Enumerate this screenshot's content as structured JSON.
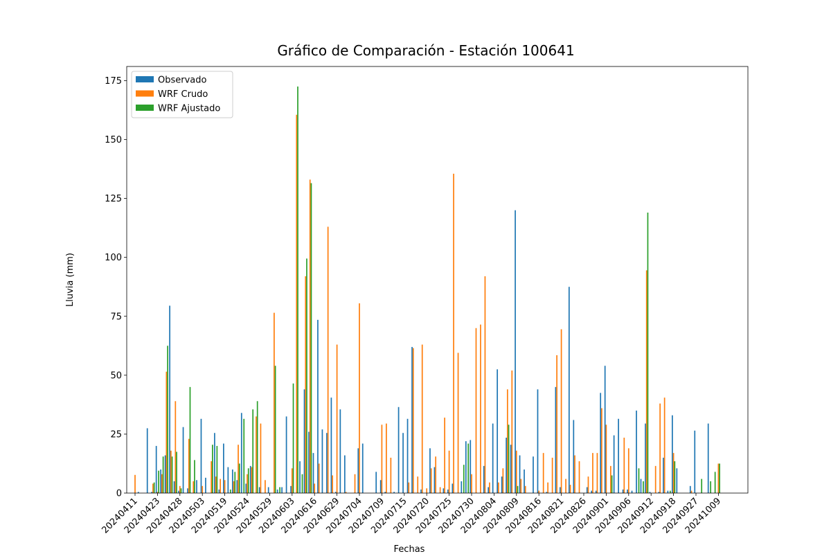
{
  "chart_data": {
    "type": "bar",
    "title": "Gráfico de Comparación - Estación 100641",
    "x_label": "Fechas",
    "y_label": "Lluvia (mm)",
    "legend": "upper left",
    "categories": [
      "20240411",
      null,
      null,
      null,
      null,
      "20240423",
      null,
      null,
      null,
      null,
      "20240428",
      null,
      null,
      null,
      null,
      "20240503",
      null,
      null,
      null,
      null,
      "20240519",
      null,
      null,
      null,
      null,
      "20240524",
      null,
      null,
      null,
      null,
      "20240529",
      null,
      null,
      null,
      null,
      "20240603",
      null,
      null,
      null,
      null,
      "20240616",
      null,
      null,
      null,
      null,
      "20240629",
      null,
      null,
      null,
      null,
      "20240704",
      null,
      null,
      null,
      null,
      "20240709",
      null,
      null,
      null,
      null,
      "20240715",
      null,
      null,
      null,
      null,
      "20240720",
      null,
      null,
      null,
      null,
      "20240725",
      null,
      null,
      null,
      null,
      "20240730",
      null,
      null,
      null,
      null,
      "20240804",
      null,
      null,
      null,
      null,
      "20240809",
      null,
      null,
      null,
      null,
      "20240816",
      null,
      null,
      null,
      null,
      "20240821",
      null,
      null,
      null,
      null,
      "20240826",
      null,
      null,
      null,
      null,
      "20240901",
      null,
      null,
      null,
      null,
      "20240906",
      null,
      null,
      null,
      null,
      "20240912",
      null,
      null,
      null,
      null,
      "20240918",
      null,
      null,
      null,
      null,
      "20240927",
      null,
      null,
      null,
      null,
      "20241009"
    ],
    "series": [
      {
        "name": "Observado",
        "color": "#1f77b4",
        "values": [
          0,
          0.5,
          0,
          27.5,
          0.5,
          20,
          10,
          16,
          79.5,
          5,
          1,
          28,
          2,
          0,
          5.5,
          31.5,
          6.5,
          0,
          25.5,
          1.5,
          21,
          11,
          10,
          5.5,
          34,
          4,
          11.5,
          0,
          2.5,
          0,
          2.5,
          0,
          1.5,
          2.5,
          32.5,
          3,
          0,
          13.5,
          44,
          26,
          17,
          73.5,
          27,
          25.5,
          40.5,
          0.5,
          35.5,
          16,
          0,
          0,
          19,
          21,
          0,
          0,
          9,
          5.5,
          0.5,
          0,
          0.5,
          36.5,
          25.5,
          31.5,
          62,
          0,
          1.5,
          0,
          19,
          11,
          0,
          2,
          1.5,
          4,
          0,
          5,
          22,
          22.5,
          0,
          0,
          11.5,
          2.5,
          29.5,
          52.5,
          7,
          23.5,
          20.5,
          120,
          16,
          10,
          0,
          15.5,
          44,
          0,
          0.5,
          0,
          45,
          2.5,
          0,
          87.5,
          31,
          0,
          0,
          2.5,
          1,
          1,
          42.5,
          54,
          0,
          24.5,
          31.5,
          1.5,
          1.5,
          1,
          35,
          6,
          29.5,
          0.5,
          0,
          0.5,
          15,
          1,
          33,
          10.5,
          0,
          0,
          3,
          26.5,
          0,
          0,
          29.5,
          0,
          0
        ]
      },
      {
        "name": "WRF Crudo",
        "color": "#ff7f0e",
        "values": [
          7.7,
          0,
          0,
          0,
          4,
          0.5,
          8,
          51.5,
          18,
          39,
          3,
          0,
          23,
          5,
          0,
          3,
          0,
          13.5,
          7,
          6,
          5.5,
          0,
          5,
          20.5,
          0,
          8,
          11,
          32.5,
          29.5,
          5.5,
          0,
          76.5,
          0,
          0,
          0,
          10.5,
          160.5,
          0,
          92,
          133,
          4,
          12.5,
          0,
          113,
          7.5,
          63,
          0,
          0.5,
          0,
          8,
          80.5,
          0,
          0,
          0,
          0,
          29,
          29.5,
          15,
          0,
          0,
          0,
          4.5,
          61.5,
          7,
          63,
          2,
          10.5,
          15.5,
          2.5,
          32,
          18,
          135.5,
          59.5,
          0,
          0,
          8,
          70,
          71.5,
          92,
          4.5,
          0,
          4.5,
          10.5,
          44,
          52,
          18,
          6,
          3,
          0,
          0,
          1,
          17,
          4.5,
          15,
          58.5,
          69.5,
          6,
          3.5,
          16,
          13.5,
          0,
          7,
          17,
          17,
          36,
          29,
          11.5,
          0,
          0,
          23.5,
          19,
          0,
          0,
          0,
          94.5,
          0,
          11.5,
          38,
          40.5,
          0,
          17,
          0,
          0,
          0,
          1,
          0,
          0,
          0,
          0,
          0,
          12.5
        ]
      },
      {
        "name": "WRF Ajustado",
        "color": "#2ca02c",
        "values": [
          0,
          0,
          0,
          0,
          4.5,
          9.5,
          15.5,
          62.5,
          15.5,
          17.5,
          2,
          0,
          45,
          14,
          0,
          0,
          0,
          20.5,
          20,
          0,
          0,
          1.5,
          9,
          12.5,
          31.5,
          10.5,
          35.5,
          39,
          0,
          0,
          0,
          54,
          2.5,
          0,
          0,
          46.5,
          172.5,
          8,
          99.5,
          131.5,
          0,
          0,
          0,
          0,
          0,
          0,
          0,
          0,
          0,
          0,
          0,
          0,
          0,
          0,
          0,
          0,
          0,
          0,
          0,
          0,
          0,
          0,
          0,
          0,
          0,
          0,
          0,
          0,
          0,
          0,
          0,
          0,
          0,
          12,
          21,
          0,
          0,
          0,
          0,
          0,
          0,
          0,
          0,
          29,
          0,
          3,
          0,
          0,
          0,
          0,
          0,
          0,
          0,
          0,
          0,
          0,
          0,
          0,
          0,
          0,
          0,
          0,
          0,
          0,
          0,
          0,
          7.5,
          0,
          0,
          0,
          0,
          0,
          10.5,
          5,
          119,
          0,
          0,
          0,
          0,
          1,
          13.5,
          0,
          0,
          0,
          0,
          0,
          6,
          0,
          5,
          9,
          12.5
        ]
      }
    ],
    "ylim": [
      0,
      181
    ],
    "yticks": [
      0,
      25,
      50,
      75,
      100,
      125,
      150,
      175
    ]
  }
}
